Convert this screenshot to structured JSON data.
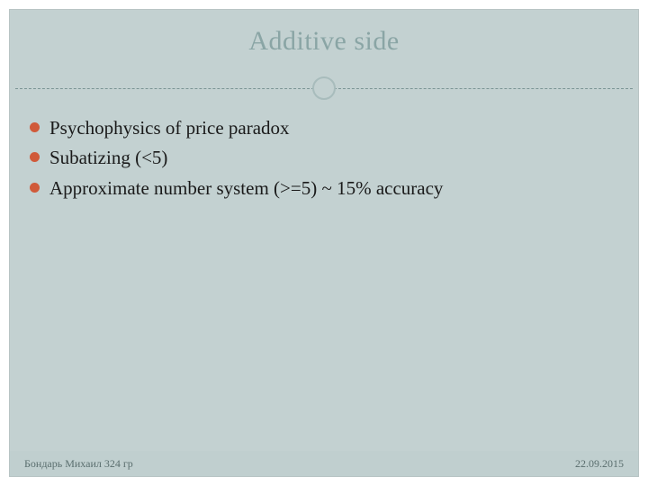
{
  "title": "Additive side",
  "title_color": "#8aa5a5",
  "title_fontsize": 30,
  "divider": {
    "dash_color": "#7a9494",
    "circle_border_color": "#a8bcbc",
    "circle_bg": "#c3d1d1"
  },
  "body_bg": "#c3d1d1",
  "bullets": {
    "dot_color": "#d05a3a",
    "text_color": "#1a1a1a",
    "fontsize": 21,
    "items": [
      "Psychophysics of price paradox",
      "Subatizing (<5)",
      "Approximate number system (>=5) ~ 15% accuracy"
    ]
  },
  "footer": {
    "bg": "#c0cfcf",
    "text_color": "#5a6e6e",
    "left": "Бондарь Михаил 324 гр",
    "right": "22.09.2015",
    "fontsize": 12
  }
}
